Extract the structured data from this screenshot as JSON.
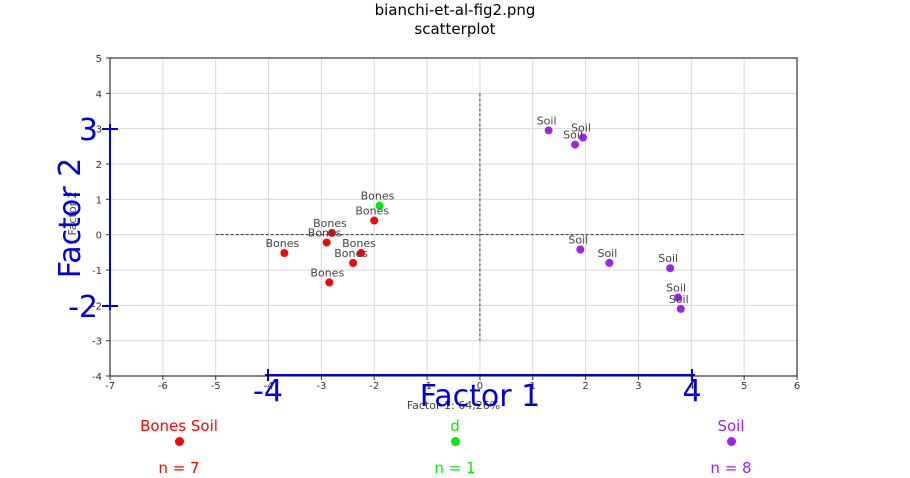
{
  "window": {
    "title": "bianchi-et-al-fig2.png",
    "subtitle": "scatterplot"
  },
  "chart_data": {
    "type": "scatter",
    "original_figure": {
      "xlabel": "Factor 1: 64,26%",
      "ylabel": "Factor 2",
      "xlim": [
        -7,
        6
      ],
      "ylim": [
        -4,
        5
      ],
      "x_ticks": [
        -7,
        -6,
        -5,
        -4,
        -3,
        -2,
        -1,
        0,
        1,
        2,
        3,
        4,
        5,
        6
      ],
      "y_ticks": [
        -4,
        -3,
        -2,
        -1,
        0,
        1,
        2,
        3,
        4,
        5
      ],
      "grid": true,
      "points": [
        {
          "label": "Soil",
          "x": 1.3,
          "y": 2.95
        },
        {
          "label": "Soil",
          "x": 1.95,
          "y": 2.75
        },
        {
          "label": "Soil",
          "x": 1.8,
          "y": 2.55
        },
        {
          "label": "Bones",
          "x": -1.9,
          "y": 0.82
        },
        {
          "label": "Bones",
          "x": -2.0,
          "y": 0.4
        },
        {
          "label": "Bones",
          "x": -2.8,
          "y": 0.05
        },
        {
          "label": "Bones",
          "x": -2.9,
          "y": -0.22
        },
        {
          "label": "Bones",
          "x": -3.7,
          "y": -0.52
        },
        {
          "label": "Bones",
          "x": -2.25,
          "y": -0.52
        },
        {
          "label": "Bones",
          "x": -2.4,
          "y": -0.8
        },
        {
          "label": "Bones",
          "x": -2.85,
          "y": -1.35
        },
        {
          "label": "Soil",
          "x": 1.9,
          "y": -0.42
        },
        {
          "label": "Soil",
          "x": 2.45,
          "y": -0.8
        },
        {
          "label": "Soil",
          "x": 3.6,
          "y": -0.95
        },
        {
          "label": "Soil",
          "x": 3.75,
          "y": -1.78
        },
        {
          "label": "Soil",
          "x": 3.8,
          "y": -2.1
        }
      ]
    },
    "overlay": {
      "xlabel": "Factor 1",
      "ylabel": "Factor 2",
      "x_ticks": [
        -4,
        4
      ],
      "y_ticks": [
        -2,
        3
      ]
    },
    "legend": [
      {
        "name": "Bones Soil",
        "count_label": "n = 7",
        "color": "#ff0000"
      },
      {
        "name": "d",
        "count_label": "n = 1",
        "color": "#00ee00"
      },
      {
        "name": "Soil",
        "count_label": "n = 8",
        "color": "#a020f0"
      }
    ]
  }
}
